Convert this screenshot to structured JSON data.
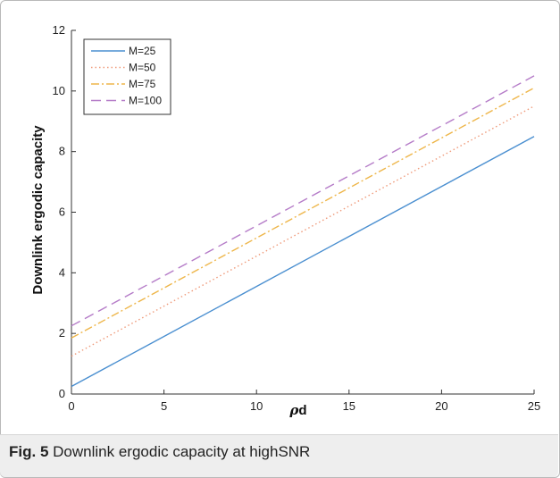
{
  "caption": {
    "label": "Fig. 5",
    "text": "Downlink ergodic capacity at highSNR"
  },
  "colors": {
    "M25": "#4a8fd0",
    "M50": "#ef9a7a",
    "M75": "#eeb64a",
    "M100": "#b57cc8",
    "axis": "#333333",
    "caption_bg": "#eeeeee"
  },
  "chart_data": {
    "type": "line",
    "title": "",
    "xlabel_main": "ρ",
    "xlabel_sub": "d",
    "ylabel": "Downlink ergodic capacity",
    "xlim": [
      0,
      25
    ],
    "ylim": [
      0,
      12
    ],
    "xticks": [
      0,
      5,
      10,
      15,
      20,
      25
    ],
    "yticks": [
      0,
      2,
      4,
      6,
      8,
      10,
      12
    ],
    "grid": false,
    "legend_position": "top-left",
    "x": [
      0,
      25
    ],
    "series": [
      {
        "name": "M=25",
        "values": [
          0.25,
          8.5
        ],
        "style": "solid",
        "color": "#4a8fd0"
      },
      {
        "name": "M=50",
        "values": [
          1.25,
          9.5
        ],
        "style": "dotted",
        "color": "#ef9a7a"
      },
      {
        "name": "M=75",
        "values": [
          1.85,
          10.1
        ],
        "style": "dashdot",
        "color": "#eeb64a"
      },
      {
        "name": "M=100",
        "values": [
          2.25,
          10.5
        ],
        "style": "dashed",
        "color": "#b57cc8"
      }
    ]
  }
}
